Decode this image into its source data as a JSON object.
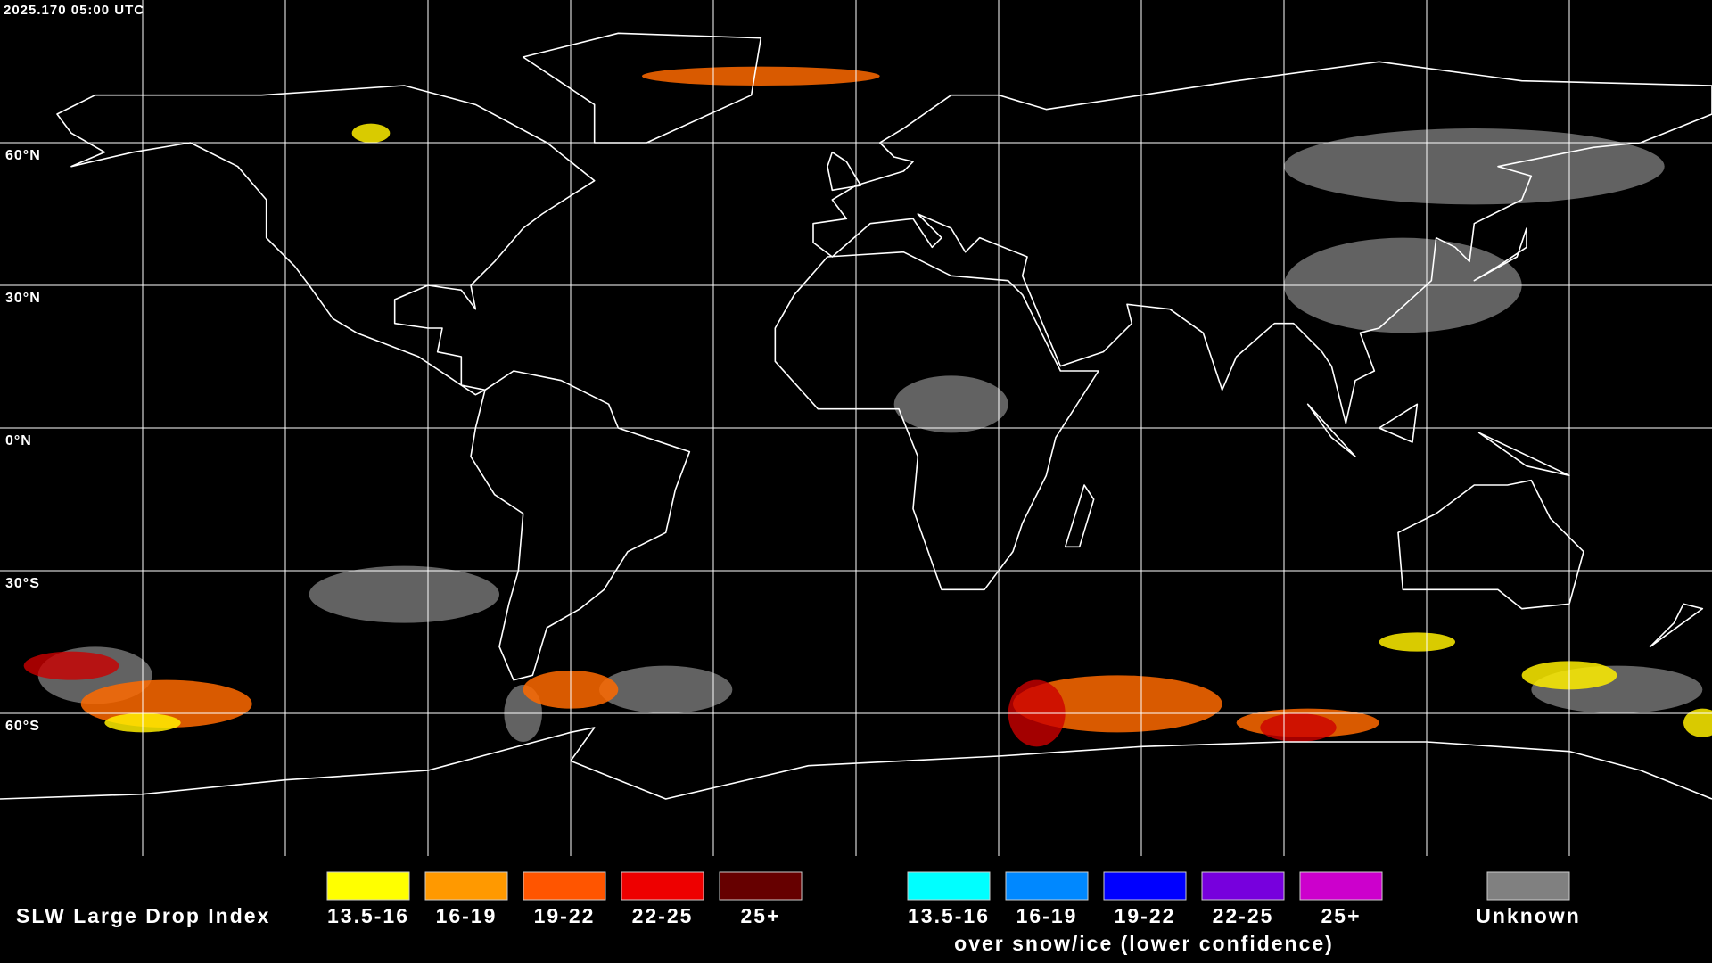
{
  "timestamp": "2025.170 05:00 UTC",
  "lat_labels": [
    "60°N",
    "30°N",
    "0°N",
    "30°S",
    "60°S"
  ],
  "legend": {
    "title": "SLW Large Drop Index",
    "liquid": [
      {
        "label": "13.5-16",
        "color": "#ffff00"
      },
      {
        "label": "16-19",
        "color": "#ff9900"
      },
      {
        "label": "19-22",
        "color": "#ff5500"
      },
      {
        "label": "22-25",
        "color": "#ee0000"
      },
      {
        "label": "25+",
        "color": "#660000"
      }
    ],
    "snow_ice": {
      "items": [
        {
          "label": "13.5-16",
          "color": "#00ffff"
        },
        {
          "label": "16-19",
          "color": "#0088ff"
        },
        {
          "label": "19-22",
          "color": "#0000ff"
        },
        {
          "label": "22-25",
          "color": "#7700dd"
        },
        {
          "label": "25+",
          "color": "#cc00cc"
        }
      ],
      "note": "over snow/ice (lower confidence)"
    },
    "unknown": {
      "label": "Unknown",
      "color": "#808080"
    }
  }
}
